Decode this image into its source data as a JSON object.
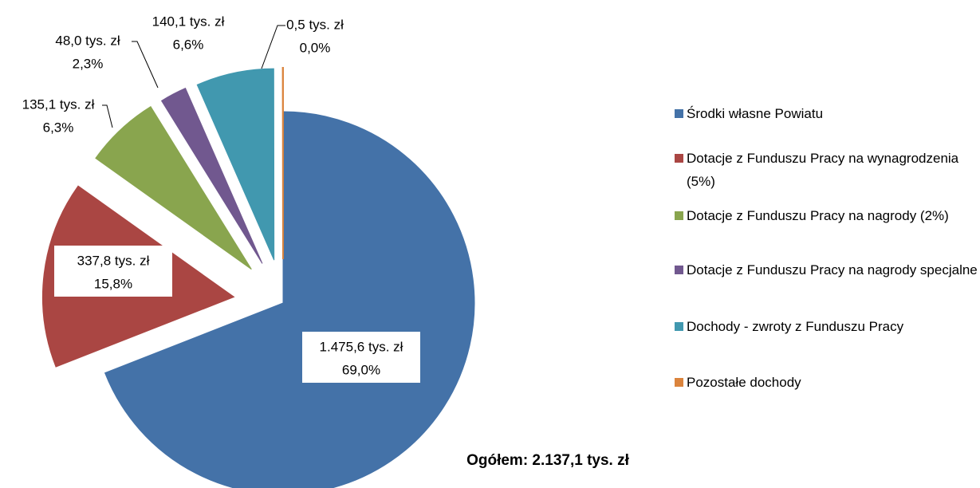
{
  "chart_data": {
    "type": "pie",
    "categories": [
      "Środki własne Powiatu",
      "Dotacje z Funduszu Pracy na wynagrodzenia (5%)",
      "Dotacje z Funduszu Pracy na nagrody (2%)",
      "Dotacje z Funduszu Pracy na nagrody specjalne",
      "Dochody - zwroty z Funduszu Pracy",
      "Pozostałe dochody"
    ],
    "values": [
      1475.6,
      337.8,
      135.1,
      48.0,
      140.1,
      0.5
    ],
    "value_labels": [
      "1.475,6 tys. zł",
      "337,8 tys. zł",
      "135,1 tys. zł",
      "48,0 tys. zł",
      "140,1 tys. zł",
      "0,5 tys. zł"
    ],
    "percent_labels": [
      "69,0%",
      "15,8%",
      "6,3%",
      "2,3%",
      "6,6%",
      "0,0%"
    ],
    "colors": [
      "#4472a8",
      "#aa4643",
      "#89a54e",
      "#71588f",
      "#4198af",
      "#db843d"
    ],
    "annotation": "Ogółem: 2.137,1 tys. zł",
    "legend": "right"
  }
}
